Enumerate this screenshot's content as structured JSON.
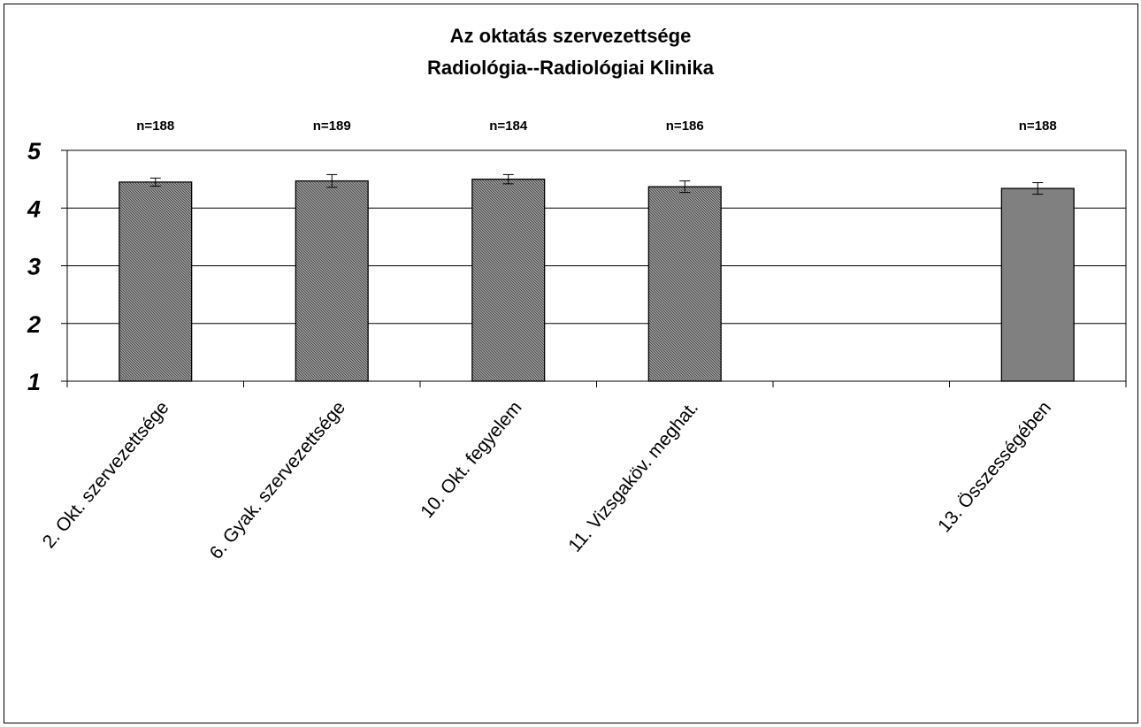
{
  "chart_data": {
    "type": "bar",
    "title": "Az oktatás szervezettsége",
    "subtitle": "Radiológia--Radiológiai Klinika",
    "categories": [
      "2. Okt. szervezettsége",
      "6. Gyak. szervezettsége",
      "10. Okt. fegyelem",
      "11. Vizsgaköv. meghat.",
      "",
      "13. Összességében"
    ],
    "values": [
      4.45,
      4.47,
      4.5,
      4.37,
      null,
      4.34
    ],
    "errors": [
      0.07,
      0.11,
      0.08,
      0.1,
      null,
      0.1
    ],
    "n_labels": [
      "n=188",
      "n=189",
      "n=184",
      "n=186",
      "",
      "n=188"
    ],
    "bar_styles": [
      "hatched",
      "hatched",
      "hatched",
      "hatched",
      "",
      "solid"
    ],
    "colors": {
      "hatched_fill": "#a6a6a6",
      "hatch_line": "#3a3a3a",
      "solid_fill": "#808080",
      "bar_stroke": "#000000",
      "grid": "#000000"
    },
    "ylim": [
      1,
      5
    ],
    "yticks": [
      1,
      2,
      3,
      4,
      5
    ],
    "grid": true,
    "legend": "none",
    "xlabel": "",
    "ylabel": ""
  }
}
